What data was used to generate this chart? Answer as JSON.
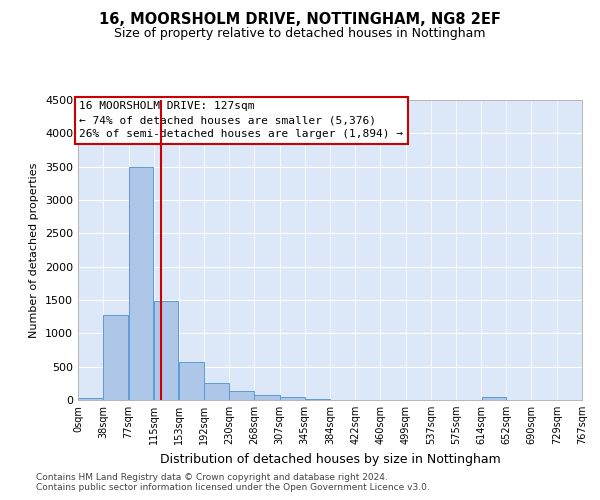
{
  "title1": "16, MOORSHOLM DRIVE, NOTTINGHAM, NG8 2EF",
  "title2": "Size of property relative to detached houses in Nottingham",
  "xlabel": "Distribution of detached houses by size in Nottingham",
  "ylabel": "Number of detached properties",
  "footer1": "Contains HM Land Registry data © Crown copyright and database right 2024.",
  "footer2": "Contains public sector information licensed under the Open Government Licence v3.0.",
  "annotation_line1": "16 MOORSHOLM DRIVE: 127sqm",
  "annotation_line2": "← 74% of detached houses are smaller (5,376)",
  "annotation_line3": "26% of semi-detached houses are larger (1,894) →",
  "property_size": 127,
  "bin_edges": [
    0,
    38,
    77,
    115,
    153,
    192,
    230,
    268,
    307,
    345,
    384,
    422,
    460,
    499,
    537,
    575,
    614,
    652,
    690,
    729,
    767
  ],
  "bar_heights": [
    30,
    1280,
    3500,
    1480,
    570,
    260,
    130,
    75,
    40,
    20,
    5,
    5,
    0,
    0,
    0,
    0,
    50,
    0,
    0,
    0
  ],
  "bar_color": "#aec6e8",
  "bar_edge_color": "#5b9bd5",
  "vline_color": "#cc0000",
  "background_color": "#dce8f8",
  "ylim_max": 4500,
  "yticks": [
    0,
    500,
    1000,
    1500,
    2000,
    2500,
    3000,
    3500,
    4000,
    4500
  ],
  "tick_labels": [
    "0sqm",
    "38sqm",
    "77sqm",
    "115sqm",
    "153sqm",
    "192sqm",
    "230sqm",
    "268sqm",
    "307sqm",
    "345sqm",
    "384sqm",
    "422sqm",
    "460sqm",
    "499sqm",
    "537sqm",
    "575sqm",
    "614sqm",
    "652sqm",
    "690sqm",
    "729sqm",
    "767sqm"
  ],
  "title1_fontsize": 10.5,
  "title2_fontsize": 9,
  "ylabel_fontsize": 8,
  "xlabel_fontsize": 9,
  "tick_fontsize": 7,
  "footer_fontsize": 6.5
}
